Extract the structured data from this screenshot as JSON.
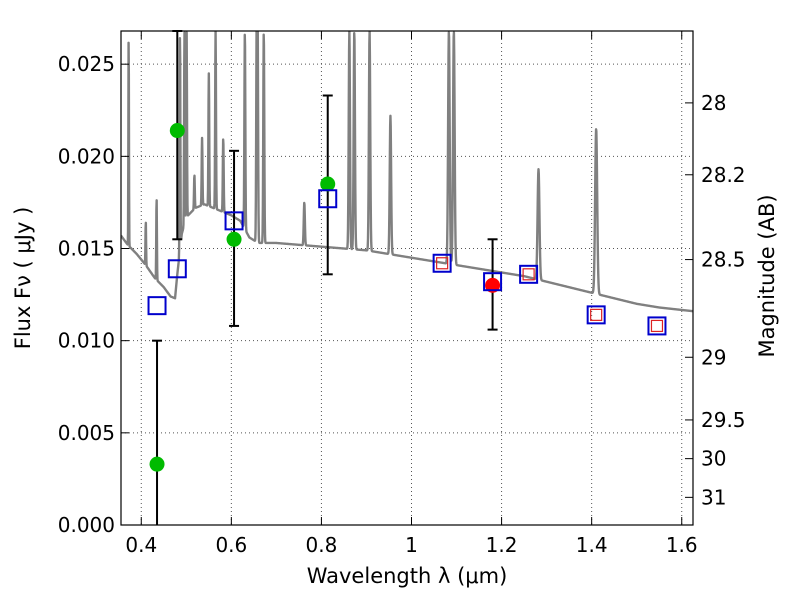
{
  "chart_data": {
    "type": "scatter",
    "xlabel": "Wavelength  λ (μm)",
    "ylabel": "Flux  Fν  ( μJy )",
    "y2label": "Magnitude (AB)",
    "xlim": [
      0.355,
      1.625
    ],
    "ylim": [
      0.0,
      0.0268
    ],
    "grid": true,
    "x_ticks": [
      0.4,
      0.6,
      0.8,
      1.0,
      1.2,
      1.4,
      1.6
    ],
    "x_tick_labels": [
      "0.4",
      "0.6",
      "0.8",
      "1",
      "1.2",
      "1.4",
      "1.6"
    ],
    "y_ticks": [
      0.0,
      0.005,
      0.01,
      0.015,
      0.02,
      0.025
    ],
    "y_tick_labels": [
      "0.000",
      "0.005",
      "0.010",
      "0.015",
      "0.020",
      "0.025"
    ],
    "y2_ticks": [
      {
        "label": "28",
        "flux": 0.0229
      },
      {
        "label": "28.2",
        "flux": 0.019
      },
      {
        "label": "28.5",
        "flux": 0.0144
      },
      {
        "label": "29",
        "flux": 0.0091
      },
      {
        "label": "29.5",
        "flux": 0.0057
      },
      {
        "label": "30",
        "flux": 0.0036
      },
      {
        "label": "31",
        "flux": 0.0015
      }
    ],
    "colors": {
      "sed": "#808080",
      "observed": "#00bb00",
      "observed_red": "#ff0000",
      "model_box": "#0000cc",
      "model_inner_box": "#dd2222",
      "errorbar": "#000000",
      "grid": "#555555"
    },
    "sed_model": {
      "continuum": [
        [
          0.355,
          0.0157
        ],
        [
          0.37,
          0.0152
        ],
        [
          0.39,
          0.0147
        ],
        [
          0.41,
          0.0141
        ],
        [
          0.43,
          0.0134
        ],
        [
          0.45,
          0.0129
        ],
        [
          0.465,
          0.0124
        ],
        [
          0.475,
          0.0123
        ],
        [
          0.48,
          0.0136
        ],
        [
          0.49,
          0.0158
        ],
        [
          0.5,
          0.0167
        ],
        [
          0.52,
          0.0172
        ],
        [
          0.54,
          0.0174
        ],
        [
          0.56,
          0.0172
        ],
        [
          0.58,
          0.017
        ],
        [
          0.6,
          0.0168
        ],
        [
          0.62,
          0.0165
        ],
        [
          0.64,
          0.0156
        ],
        [
          0.66,
          0.0153
        ],
        [
          0.7,
          0.0153
        ],
        [
          0.75,
          0.0152
        ],
        [
          0.8,
          0.0151
        ],
        [
          0.85,
          0.015
        ],
        [
          0.9,
          0.0149
        ],
        [
          0.95,
          0.0147
        ],
        [
          1.0,
          0.0145
        ],
        [
          1.05,
          0.0143
        ],
        [
          1.1,
          0.0141
        ],
        [
          1.15,
          0.0139
        ],
        [
          1.2,
          0.0137
        ],
        [
          1.25,
          0.0135
        ],
        [
          1.3,
          0.0132
        ],
        [
          1.35,
          0.0129
        ],
        [
          1.4,
          0.0126
        ],
        [
          1.45,
          0.0123
        ],
        [
          1.5,
          0.012
        ],
        [
          1.55,
          0.0118
        ],
        [
          1.625,
          0.0116
        ]
      ],
      "emission_lines": [
        {
          "x": 0.372,
          "peak": 0.0268
        },
        {
          "x": 0.41,
          "peak": 0.0165
        },
        {
          "x": 0.434,
          "peak": 0.0178
        },
        {
          "x": 0.486,
          "peak": 0.0268
        },
        {
          "x": 0.4959,
          "peak": 0.0268
        },
        {
          "x": 0.5007,
          "peak": 0.0268
        },
        {
          "x": 0.518,
          "peak": 0.019
        },
        {
          "x": 0.535,
          "peak": 0.021
        },
        {
          "x": 0.55,
          "peak": 0.0245
        },
        {
          "x": 0.565,
          "peak": 0.0268
        },
        {
          "x": 0.582,
          "peak": 0.021
        },
        {
          "x": 0.63,
          "peak": 0.0268
        },
        {
          "x": 0.6563,
          "peak": 0.0268
        },
        {
          "x": 0.6583,
          "peak": 0.0268
        },
        {
          "x": 0.672,
          "peak": 0.0268
        },
        {
          "x": 0.762,
          "peak": 0.0175
        },
        {
          "x": 0.862,
          "peak": 0.0268
        },
        {
          "x": 0.873,
          "peak": 0.0268
        },
        {
          "x": 0.9069,
          "peak": 0.0268
        },
        {
          "x": 0.9532,
          "peak": 0.0222
        },
        {
          "x": 1.083,
          "peak": 0.0268
        },
        {
          "x": 1.094,
          "peak": 0.0268
        },
        {
          "x": 1.282,
          "peak": 0.0193
        },
        {
          "x": 1.41,
          "peak": 0.0215
        }
      ]
    },
    "series": [
      {
        "name": "",
        "marker": "circle",
        "color": "green",
        "points": [
          {
            "x": 0.435,
            "y": 0.0033,
            "yerr_low": 0.0033,
            "yerr_high": 0.0067
          },
          {
            "x": 0.48,
            "y": 0.0214,
            "yerr_low": 0.0059,
            "yerr_high": 0.0054
          },
          {
            "x": 0.606,
            "y": 0.0155,
            "yerr_low": 0.0047,
            "yerr_high": 0.0048
          },
          {
            "x": 0.814,
            "y": 0.0185,
            "yerr_low": 0.0049,
            "yerr_high": 0.0048
          }
        ]
      },
      {
        "name": "",
        "marker": "circle",
        "color": "red",
        "points": [
          {
            "x": 1.18,
            "y": 0.013,
            "yerr_low": 0.0024,
            "yerr_high": 0.0025
          }
        ]
      },
      {
        "name": "",
        "marker": "open-square",
        "color": "blue",
        "points": [
          {
            "x": 0.435,
            "y": 0.0119
          },
          {
            "x": 0.48,
            "y": 0.0139
          },
          {
            "x": 0.606,
            "y": 0.0165
          },
          {
            "x": 0.814,
            "y": 0.0177
          },
          {
            "x": 1.068,
            "y": 0.0142
          },
          {
            "x": 1.18,
            "y": 0.0132
          },
          {
            "x": 1.26,
            "y": 0.0136
          },
          {
            "x": 1.41,
            "y": 0.0114
          },
          {
            "x": 1.545,
            "y": 0.0108
          }
        ]
      },
      {
        "name": "",
        "marker": "open-square-small",
        "color": "red",
        "points": [
          {
            "x": 1.068,
            "y": 0.0142
          },
          {
            "x": 1.26,
            "y": 0.0136
          },
          {
            "x": 1.41,
            "y": 0.0114
          },
          {
            "x": 1.545,
            "y": 0.0108
          }
        ]
      }
    ]
  }
}
